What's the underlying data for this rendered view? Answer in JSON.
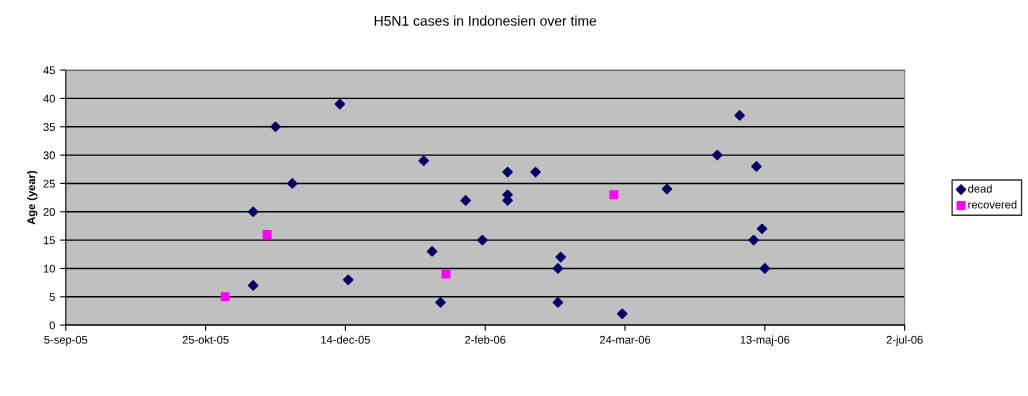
{
  "chart_data": {
    "type": "scatter",
    "title": "H5N1 cases in Indonesien over time",
    "ylabel": "Age (year)",
    "xlim": [
      "2005-09-05",
      "2006-07-02"
    ],
    "xticks": [
      {
        "value": "2005-09-05",
        "label": "5-sep-05"
      },
      {
        "value": "2005-10-25",
        "label": "25-okt-05"
      },
      {
        "value": "2005-12-14",
        "label": "14-dec-05"
      },
      {
        "value": "2006-02-02",
        "label": "2-feb-06"
      },
      {
        "value": "2006-03-24",
        "label": "24-mar-06"
      },
      {
        "value": "2006-05-13",
        "label": "13-maj-06"
      },
      {
        "value": "2006-07-02",
        "label": "2-jul-06"
      }
    ],
    "ylim": [
      0,
      45
    ],
    "yticks": [
      0,
      5,
      10,
      15,
      20,
      25,
      30,
      35,
      40,
      45
    ],
    "grid": "y",
    "legend": "right",
    "series": [
      {
        "name": "dead",
        "color": "#000066",
        "marker": "diamond",
        "x": [
          "2005-11-11",
          "2005-11-11",
          "2005-11-19",
          "2005-11-25",
          "2005-12-12",
          "2005-12-15",
          "2006-01-11",
          "2006-01-14",
          "2006-01-17",
          "2006-01-26",
          "2006-02-01",
          "2006-02-10",
          "2006-02-10",
          "2006-02-10",
          "2006-02-20",
          "2006-03-01",
          "2006-02-28",
          "2006-02-28",
          "2006-03-23",
          "2006-04-08",
          "2006-04-26",
          "2006-05-04",
          "2006-05-10",
          "2006-05-09",
          "2006-05-12",
          "2006-05-13"
        ],
        "values": [
          7,
          20,
          35,
          25,
          39,
          8,
          29,
          13,
          4,
          22,
          15,
          27,
          23,
          22,
          27,
          12,
          10,
          4,
          2,
          24,
          30,
          37,
          28,
          15,
          17,
          10
        ]
      },
      {
        "name": "recovered",
        "color": "#ff00ff",
        "marker": "square",
        "x": [
          "2005-11-01",
          "2005-11-16",
          "2006-01-19",
          "2006-03-20"
        ],
        "values": [
          5,
          16,
          9,
          23
        ]
      }
    ]
  }
}
